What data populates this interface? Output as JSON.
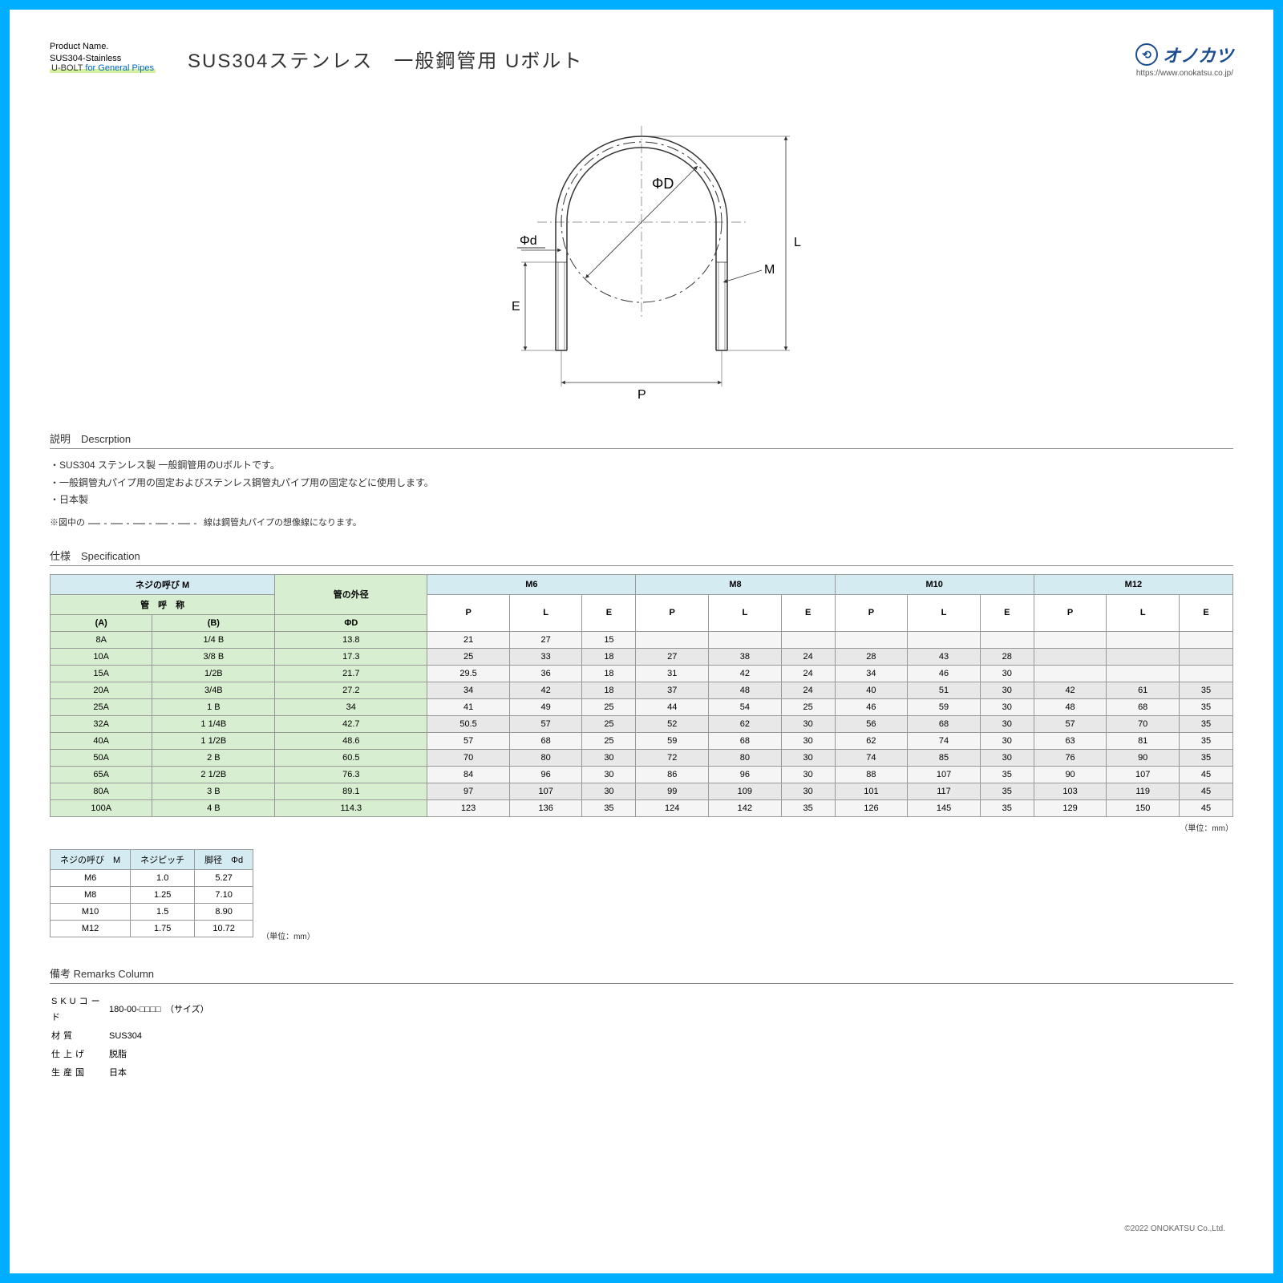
{
  "header": {
    "product_name_label": "Product Name.",
    "product_name_sub1": "SUS304-Stainless",
    "product_name_sub2a": "U-BOLT",
    "product_name_sub2b": " for General Pipes",
    "main_title": "SUS304ステンレス　一般鋼管用 Uボルト",
    "logo_text": "オノカツ",
    "logo_url": "https://www.onokatsu.co.jp/"
  },
  "diagram": {
    "labels": {
      "D": "ΦD",
      "d": "Φd",
      "L": "L",
      "E": "E",
      "M": "M",
      "P": "P"
    }
  },
  "description": {
    "section_title": "説明　Descrption",
    "lines": [
      "・SUS304 ステンレス製 一般鋼管用のUボルトです。",
      "・一般鋼管丸パイプ用の固定およびステンレス鋼管丸パイプ用の固定などに使用します。",
      "・日本製"
    ],
    "dash_note_prefix": "※図中の",
    "dash_note_suffix": "線は鋼管丸パイプの想像線になります。"
  },
  "spec": {
    "section_title": "仕様　Specification",
    "group_header": "ネジの呼び M",
    "groups": [
      "M6",
      "M8",
      "M10",
      "M12"
    ],
    "sub_left": [
      "管　呼　称",
      "管の外径"
    ],
    "sub_left2": [
      "(A)",
      "(B)",
      "ΦD"
    ],
    "sub_cols": [
      "P",
      "L",
      "E"
    ],
    "rows": [
      {
        "a": "8A",
        "b": "1/4 B",
        "od": "13.8",
        "m6": [
          "21",
          "27",
          "15"
        ],
        "m8": [
          "",
          "",
          ""
        ],
        "m10": [
          "",
          "",
          ""
        ],
        "m12": [
          "",
          "",
          ""
        ]
      },
      {
        "a": "10A",
        "b": "3/8 B",
        "od": "17.3",
        "m6": [
          "25",
          "33",
          "18"
        ],
        "m8": [
          "27",
          "38",
          "24"
        ],
        "m10": [
          "28",
          "43",
          "28"
        ],
        "m12": [
          "",
          "",
          ""
        ]
      },
      {
        "a": "15A",
        "b": "1/2B",
        "od": "21.7",
        "m6": [
          "29.5",
          "36",
          "18"
        ],
        "m8": [
          "31",
          "42",
          "24"
        ],
        "m10": [
          "34",
          "46",
          "30"
        ],
        "m12": [
          "",
          "",
          ""
        ]
      },
      {
        "a": "20A",
        "b": "3/4B",
        "od": "27.2",
        "m6": [
          "34",
          "42",
          "18"
        ],
        "m8": [
          "37",
          "48",
          "24"
        ],
        "m10": [
          "40",
          "51",
          "30"
        ],
        "m12": [
          "42",
          "61",
          "35"
        ]
      },
      {
        "a": "25A",
        "b": "1 B",
        "od": "34",
        "m6": [
          "41",
          "49",
          "25"
        ],
        "m8": [
          "44",
          "54",
          "25"
        ],
        "m10": [
          "46",
          "59",
          "30"
        ],
        "m12": [
          "48",
          "68",
          "35"
        ]
      },
      {
        "a": "32A",
        "b": "1 1/4B",
        "od": "42.7",
        "m6": [
          "50.5",
          "57",
          "25"
        ],
        "m8": [
          "52",
          "62",
          "30"
        ],
        "m10": [
          "56",
          "68",
          "30"
        ],
        "m12": [
          "57",
          "70",
          "35"
        ]
      },
      {
        "a": "40A",
        "b": "1 1/2B",
        "od": "48.6",
        "m6": [
          "57",
          "68",
          "25"
        ],
        "m8": [
          "59",
          "68",
          "30"
        ],
        "m10": [
          "62",
          "74",
          "30"
        ],
        "m12": [
          "63",
          "81",
          "35"
        ]
      },
      {
        "a": "50A",
        "b": "2 B",
        "od": "60.5",
        "m6": [
          "70",
          "80",
          "30"
        ],
        "m8": [
          "72",
          "80",
          "30"
        ],
        "m10": [
          "74",
          "85",
          "30"
        ],
        "m12": [
          "76",
          "90",
          "35"
        ]
      },
      {
        "a": "65A",
        "b": "2 1/2B",
        "od": "76.3",
        "m6": [
          "84",
          "96",
          "30"
        ],
        "m8": [
          "86",
          "96",
          "30"
        ],
        "m10": [
          "88",
          "107",
          "35"
        ],
        "m12": [
          "90",
          "107",
          "45"
        ]
      },
      {
        "a": "80A",
        "b": "3 B",
        "od": "89.1",
        "m6": [
          "97",
          "107",
          "30"
        ],
        "m8": [
          "99",
          "109",
          "30"
        ],
        "m10": [
          "101",
          "117",
          "35"
        ],
        "m12": [
          "103",
          "119",
          "45"
        ]
      },
      {
        "a": "100A",
        "b": "4 B",
        "od": "114.3",
        "m6": [
          "123",
          "136",
          "35"
        ],
        "m8": [
          "124",
          "142",
          "35"
        ],
        "m10": [
          "126",
          "145",
          "35"
        ],
        "m12": [
          "129",
          "150",
          "45"
        ]
      }
    ],
    "unit_note": "（単位：mm）"
  },
  "pitch": {
    "headers": [
      "ネジの呼び　M",
      "ネジピッチ",
      "脚径　Φd"
    ],
    "rows": [
      [
        "M6",
        "1.0",
        "5.27"
      ],
      [
        "M8",
        "1.25",
        "7.10"
      ],
      [
        "M10",
        "1.5",
        "8.90"
      ],
      [
        "M12",
        "1.75",
        "10.72"
      ]
    ],
    "unit_note": "（単位：mm）"
  },
  "remarks": {
    "section_title": "備考  Remarks Column",
    "items": [
      [
        "SKUコード",
        "180-00-□□□□　（サイズ）"
      ],
      [
        "材質",
        "SUS304"
      ],
      [
        "仕上げ",
        "脱脂"
      ],
      [
        "生産国",
        "日本"
      ]
    ]
  },
  "copyright": "©2022 ONOKATSU Co.,Ltd."
}
